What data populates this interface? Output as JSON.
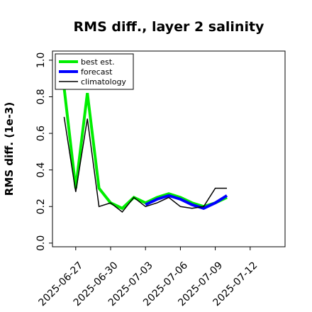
{
  "chart_data": {
    "type": "line",
    "title": "RMS diff., layer 2 salinity",
    "xlabel": "",
    "ylabel": "RMS diff. (1e-3)",
    "x": [
      "2025-06-26",
      "2025-06-27",
      "2025-06-28",
      "2025-06-29",
      "2025-06-30",
      "2025-07-01",
      "2025-07-02",
      "2025-07-03",
      "2025-07-04",
      "2025-07-05",
      "2025-07-06",
      "2025-07-07",
      "2025-07-08",
      "2025-07-09",
      "2025-07-10"
    ],
    "series": [
      {
        "name": "best est.",
        "color": "#00ee00",
        "values": [
          0.85,
          0.3,
          0.82,
          0.3,
          0.22,
          0.19,
          0.25,
          0.22,
          0.25,
          0.27,
          0.25,
          0.22,
          0.2,
          0.22,
          0.25
        ]
      },
      {
        "name": "forecast",
        "color": "#0000ff",
        "values": [
          null,
          null,
          null,
          null,
          null,
          null,
          null,
          0.21,
          0.24,
          0.26,
          0.24,
          0.21,
          0.19,
          0.22,
          0.26
        ]
      },
      {
        "name": "climatology",
        "color": "#000000",
        "values": [
          0.69,
          0.28,
          0.68,
          0.2,
          0.22,
          0.17,
          0.25,
          0.2,
          0.22,
          0.25,
          0.2,
          0.19,
          0.2,
          0.3,
          0.3
        ]
      }
    ],
    "ylim": [
      -0.02,
      1.05
    ],
    "yticks": [
      "0.0",
      "0.2",
      "0.4",
      "0.6",
      "0.8",
      "1.0"
    ],
    "xtick_labels": [
      "2025-06-27",
      "2025-06-30",
      "2025-07-03",
      "2025-07-06",
      "2025-07-09",
      "2025-07-12"
    ],
    "xtick_colors": [
      "#000000",
      "#000000",
      "#228b22",
      "#000000",
      "#000000",
      "#000000"
    ],
    "grid": false,
    "legend_position": "top-left"
  }
}
